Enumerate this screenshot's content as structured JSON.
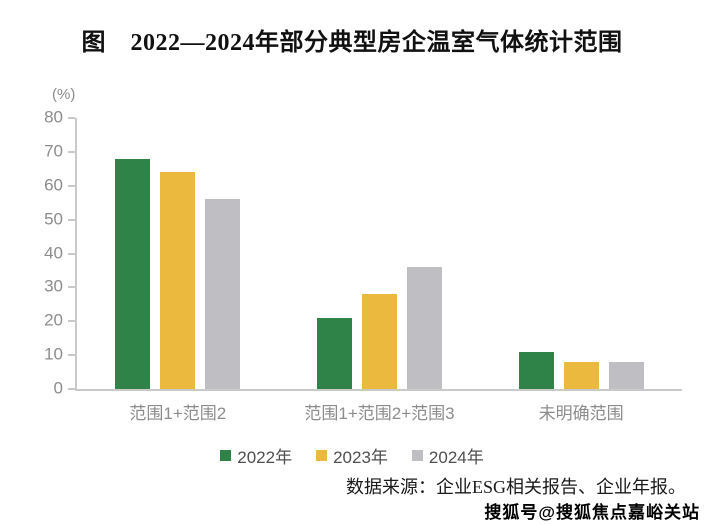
{
  "title": "图　2022—2024年部分典型房企温室气体统计范围",
  "chart_data": {
    "type": "bar",
    "categories": [
      "范围1+范围2",
      "范围1+范围2+范围3",
      "未明确范围"
    ],
    "series": [
      {
        "name": "2022年",
        "color": "#2f8349",
        "values": [
          68,
          21,
          11
        ]
      },
      {
        "name": "2023年",
        "color": "#ecb93f",
        "values": [
          64,
          28,
          8
        ]
      },
      {
        "name": "2024年",
        "color": "#bfbfc3",
        "values": [
          56,
          36,
          8
        ]
      }
    ],
    "title": "图　2022—2024年部分典型房企温室气体统计范围",
    "xlabel": "",
    "ylabel": "(%)",
    "ylim": [
      0,
      80
    ],
    "ytick_step": 10,
    "grid": false,
    "legend_position": "bottom"
  },
  "unit_label": "(%)",
  "source_text": "数据来源：企业ESG相关报告、企业年报。",
  "watermark_text": "搜狐号@搜狐焦点嘉峪关站",
  "colors": {
    "axis": "#c9c9c9",
    "tick_text": "#8c8c8c",
    "category_text": "#8c8c8c",
    "legend_text": "#4f4f4f",
    "title_text": "#111111"
  }
}
